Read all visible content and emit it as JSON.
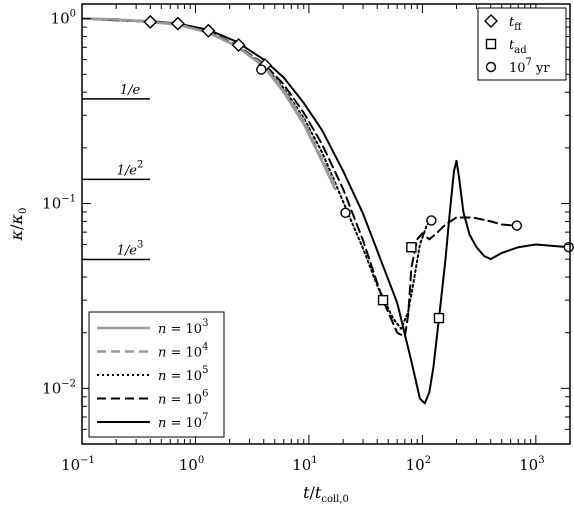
{
  "chart_data": {
    "type": "line",
    "xlabel": "t/t",
    "xlabel_sub": "coll,0",
    "ylabel": "κ/κ",
    "ylabel_sub": "0",
    "xscale": "log",
    "yscale": "log",
    "xlim": [
      0.1,
      2000
    ],
    "ylim": [
      0.005,
      1.2
    ],
    "x_ticks": [
      {
        "value": 0.1,
        "base": "10",
        "exp": "−1"
      },
      {
        "value": 1,
        "base": "10",
        "exp": "0"
      },
      {
        "value": 10,
        "base": "10",
        "exp": "1"
      },
      {
        "value": 100,
        "base": "10",
        "exp": "2"
      },
      {
        "value": 1000,
        "base": "10",
        "exp": "3"
      }
    ],
    "y_ticks": [
      {
        "value": 0.01,
        "base": "10",
        "exp": "−2"
      },
      {
        "value": 0.1,
        "base": "10",
        "exp": "−1"
      },
      {
        "value": 1,
        "base": "10",
        "exp": "0"
      }
    ],
    "reference_lines": [
      {
        "label_base": "1/e",
        "label_exp": "",
        "value": 0.368
      },
      {
        "label_base": "1/e",
        "label_exp": "2",
        "value": 0.135
      },
      {
        "label_base": "1/e",
        "label_exp": "3",
        "value": 0.0498
      }
    ],
    "series": [
      {
        "name_lhs": "n = 10",
        "name_exp": "3",
        "color": "#999999",
        "dash": "solid",
        "x": [
          0.1,
          0.2,
          0.4,
          0.7,
          1.3,
          2.3,
          4.0,
          6.0,
          9.0,
          13,
          17
        ],
        "y": [
          1.0,
          0.99,
          0.96,
          0.93,
          0.84,
          0.71,
          0.55,
          0.4,
          0.27,
          0.17,
          0.12
        ]
      },
      {
        "name_lhs": "n = 10",
        "name_exp": "4",
        "color": "#999999",
        "dash": "dashed",
        "x": [
          0.1,
          0.2,
          0.4,
          0.7,
          1.3,
          2.3,
          4.0,
          6.0,
          9.0,
          13,
          17
        ],
        "y": [
          1.0,
          0.99,
          0.96,
          0.93,
          0.84,
          0.71,
          0.56,
          0.41,
          0.28,
          0.175,
          0.125
        ]
      },
      {
        "name_lhs": "n = 10",
        "name_exp": "5",
        "color": "#000000",
        "dash": "dotted",
        "x": [
          0.1,
          0.4,
          0.7,
          1.3,
          2.3,
          4.0,
          6.0,
          9.0,
          13,
          17,
          22,
          30,
          40,
          55,
          65,
          75,
          85,
          95,
          110,
          125
        ],
        "y": [
          1.0,
          0.96,
          0.93,
          0.84,
          0.71,
          0.56,
          0.42,
          0.29,
          0.19,
          0.13,
          0.089,
          0.057,
          0.036,
          0.024,
          0.021,
          0.026,
          0.04,
          0.06,
          0.077,
          0.081
        ]
      },
      {
        "name_lhs": "n = 10",
        "name_exp": "6",
        "color": "#000000",
        "dash": "dashed",
        "x": [
          0.1,
          0.4,
          0.7,
          1.3,
          2.3,
          4.0,
          6.0,
          9.0,
          13,
          20,
          30,
          45,
          60,
          70,
          75,
          80,
          90,
          100,
          115,
          130,
          160,
          200,
          280,
          400,
          500,
          650
        ],
        "y": [
          1.0,
          0.96,
          0.93,
          0.85,
          0.72,
          0.57,
          0.44,
          0.31,
          0.21,
          0.12,
          0.063,
          0.03,
          0.02,
          0.019,
          0.025,
          0.045,
          0.064,
          0.069,
          0.064,
          0.068,
          0.077,
          0.084,
          0.084,
          0.08,
          0.077,
          0.076
        ]
      },
      {
        "name_lhs": "n = 10",
        "name_exp": "7",
        "color": "#000000",
        "dash": "solid",
        "x": [
          0.1,
          0.4,
          0.7,
          1.3,
          2.3,
          4.0,
          6.0,
          9.0,
          13,
          20,
          30,
          45,
          60,
          80,
          95,
          105,
          115,
          125,
          140,
          160,
          175,
          190,
          200,
          210,
          230,
          260,
          300,
          350,
          400,
          500,
          700,
          1000,
          1400,
          2000
        ],
        "y": [
          1.0,
          0.97,
          0.94,
          0.87,
          0.75,
          0.6,
          0.48,
          0.35,
          0.25,
          0.15,
          0.088,
          0.046,
          0.029,
          0.014,
          0.0088,
          0.0083,
          0.0095,
          0.013,
          0.024,
          0.05,
          0.092,
          0.15,
          0.17,
          0.14,
          0.09,
          0.068,
          0.058,
          0.052,
          0.05,
          0.054,
          0.058,
          0.06,
          0.059,
          0.058
        ]
      }
    ],
    "markers": {
      "t_ff": [
        {
          "x": 0.4,
          "y": 0.96
        },
        {
          "x": 0.7,
          "y": 0.94
        },
        {
          "x": 1.3,
          "y": 0.86
        },
        {
          "x": 2.4,
          "y": 0.72
        },
        {
          "x": 4.1,
          "y": 0.56
        }
      ],
      "t_ad": [
        {
          "x": 45,
          "y": 0.03
        },
        {
          "x": 80,
          "y": 0.058
        },
        {
          "x": 140,
          "y": 0.024
        }
      ],
      "yr1e7": [
        {
          "x": 3.8,
          "y": 0.53
        },
        {
          "x": 21,
          "y": 0.089
        },
        {
          "x": 120,
          "y": 0.081
        },
        {
          "x": 680,
          "y": 0.076
        },
        {
          "x": 1950,
          "y": 0.058
        }
      ]
    },
    "legend_markers": [
      {
        "symbol": "diamond",
        "label_main": "t",
        "label_sub": "ff",
        "label_tail": ""
      },
      {
        "symbol": "square",
        "label_main": "t",
        "label_sub": "ad",
        "label_tail": ""
      },
      {
        "symbol": "circle",
        "label_main": "10",
        "label_sub": "",
        "label_exp": "7",
        "label_tail": " yr"
      }
    ],
    "legend_placement_markers": "top-right",
    "legend_placement_lines": "bottom-left",
    "grid": false
  }
}
